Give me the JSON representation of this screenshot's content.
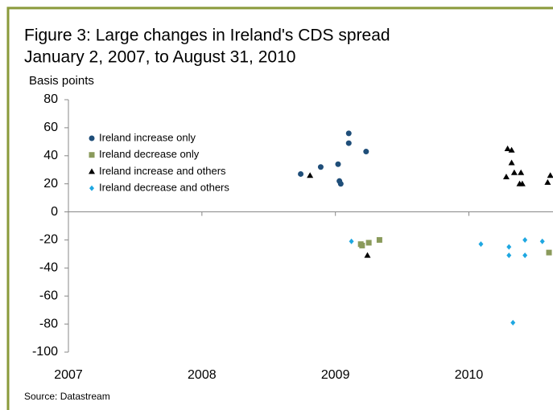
{
  "chart_data": {
    "type": "scatter",
    "title": "Figure 3: Large changes in Ireland's CDS spread",
    "subtitle": "January 2, 2007, to August 31, 2010",
    "ylabel": "Basis points",
    "source": "Source: Datastream",
    "xlim": [
      2007,
      2010.63
    ],
    "xticks": [
      2007,
      2008,
      2009,
      2010
    ],
    "ylim": [
      -100,
      80
    ],
    "yticks": [
      -100,
      -80,
      -60,
      -40,
      -20,
      0,
      20,
      40,
      60,
      80
    ],
    "series": [
      {
        "name": "Ireland increase only",
        "color": "#1f4e79",
        "marker": "circle",
        "x": [
          2008.74,
          2008.89,
          2009.02,
          2009.03,
          2009.04,
          2009.1,
          2009.1,
          2009.23
        ],
        "values": [
          27,
          32,
          34,
          22,
          20,
          56,
          49,
          43
        ]
      },
      {
        "name": "Ireland decrease only",
        "color": "#8a9a5b",
        "marker": "square",
        "x": [
          2009.19,
          2009.2,
          2009.25,
          2009.33,
          2010.6
        ],
        "values": [
          -23,
          -24,
          -22,
          -20,
          -29
        ]
      },
      {
        "name": "Ireland increase and others",
        "color": "#000000",
        "marker": "triangle",
        "x": [
          2008.81,
          2009.24,
          2010.29,
          2010.32,
          2010.32,
          2010.28,
          2010.34,
          2010.38,
          2010.39,
          2010.4,
          2010.59,
          2010.61
        ],
        "values": [
          26,
          -31,
          45,
          44,
          35,
          25,
          28,
          20,
          28,
          20,
          21,
          26
        ]
      },
      {
        "name": "Ireland decrease and others",
        "color": "#1ea7e1",
        "marker": "diamond",
        "x": [
          2009.12,
          2010.09,
          2010.3,
          2010.3,
          2010.42,
          2010.42,
          2010.55,
          2010.33
        ],
        "values": [
          -21,
          -23,
          -25,
          -31,
          -20,
          -31,
          -21,
          -79
        ]
      }
    ]
  }
}
